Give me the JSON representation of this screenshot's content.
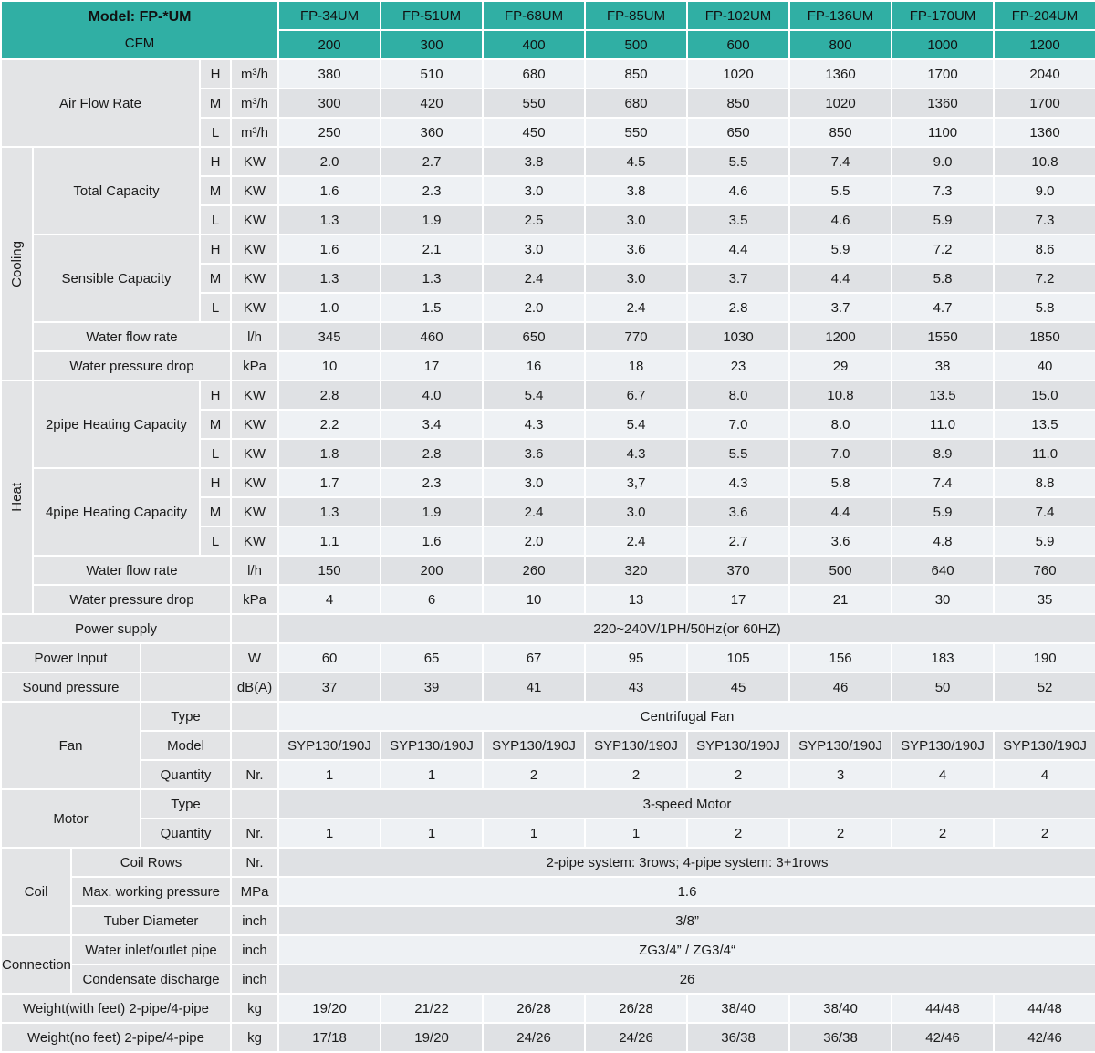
{
  "colors": {
    "teal": "#30AFA4",
    "lab": "#E3E4E6",
    "lt": "#EEF1F4",
    "gr": "#DFE1E4"
  },
  "header": {
    "model_label": "Model: FP-*UM",
    "cfm_label": "CFM",
    "models": [
      "FP-34UM",
      "FP-51UM",
      "FP-68UM",
      "FP-85UM",
      "FP-102UM",
      "FP-136UM",
      "FP-170UM",
      "FP-204UM"
    ],
    "cfm": [
      "200",
      "300",
      "400",
      "500",
      "600",
      "800",
      "1000",
      "1200"
    ]
  },
  "labels": {
    "air_flow_rate": "Air Flow Rate",
    "cooling": "Cooling",
    "heat": "Heat",
    "H": "H",
    "M": "M",
    "L": "L",
    "total_capacity": "Total Capacity",
    "sensible_capacity": "Sensible Capacity",
    "water_flow_rate": "Water flow rate",
    "water_pressure_drop": "Water pressure drop",
    "two_pipe_heating_capacity": "2pipe Heating Capacity",
    "four_pipe_heating_capacity": "4pipe Heating Capacity",
    "power_supply": "Power supply",
    "power_input": "Power Input",
    "sound_pressure": "Sound pressure",
    "fan": "Fan",
    "motor": "Motor",
    "type": "Type",
    "model": "Model",
    "quantity": "Quantity",
    "coil": "Coil",
    "coil_rows": "Coil Rows",
    "max_working_pressure": "Max. working pressure",
    "tuber_diameter": "Tuber Diameter",
    "connection": "Connection",
    "water_inlet_outlet_pipe": "Water inlet/outlet pipe",
    "condensate_discharge": "Condensate discharge",
    "weight_with_feet": "Weight(with feet) 2-pipe/4-pipe",
    "weight_no_feet": "Weight(no feet) 2-pipe/4-pipe"
  },
  "units": {
    "m3h": "m³/h",
    "kw": "KW",
    "lh": "l/h",
    "kpa": "kPa",
    "w": "W",
    "dba": "dB(A)",
    "nr": "Nr.",
    "mpa": "MPa",
    "inch": "inch",
    "kg": "kg"
  },
  "air_flow_rate": {
    "H": [
      "380",
      "510",
      "680",
      "850",
      "1020",
      "1360",
      "1700",
      "2040"
    ],
    "M": [
      "300",
      "420",
      "550",
      "680",
      "850",
      "1020",
      "1360",
      "1700"
    ],
    "L": [
      "250",
      "360",
      "450",
      "550",
      "650",
      "850",
      "1100",
      "1360"
    ]
  },
  "cooling": {
    "total_capacity": {
      "H": [
        "2.0",
        "2.7",
        "3.8",
        "4.5",
        "5.5",
        "7.4",
        "9.0",
        "10.8"
      ],
      "M": [
        "1.6",
        "2.3",
        "3.0",
        "3.8",
        "4.6",
        "5.5",
        "7.3",
        "9.0"
      ],
      "L": [
        "1.3",
        "1.9",
        "2.5",
        "3.0",
        "3.5",
        "4.6",
        "5.9",
        "7.3"
      ]
    },
    "sensible_capacity": {
      "H": [
        "1.6",
        "2.1",
        "3.0",
        "3.6",
        "4.4",
        "5.9",
        "7.2",
        "8.6"
      ],
      "M": [
        "1.3",
        "1.3",
        "2.4",
        "3.0",
        "3.7",
        "4.4",
        "5.8",
        "7.2"
      ],
      "L": [
        "1.0",
        "1.5",
        "2.0",
        "2.4",
        "2.8",
        "3.7",
        "4.7",
        "5.8"
      ]
    },
    "water_flow_rate": [
      "345",
      "460",
      "650",
      "770",
      "1030",
      "1200",
      "1550",
      "1850"
    ],
    "water_pressure_drop": [
      "10",
      "17",
      "16",
      "18",
      "23",
      "29",
      "38",
      "40"
    ]
  },
  "heat": {
    "two_pipe_heating_capacity": {
      "H": [
        "2.8",
        "4.0",
        "5.4",
        "6.7",
        "8.0",
        "10.8",
        "13.5",
        "15.0"
      ],
      "M": [
        "2.2",
        "3.4",
        "4.3",
        "5.4",
        "7.0",
        "8.0",
        "11.0",
        "13.5"
      ],
      "L": [
        "1.8",
        "2.8",
        "3.6",
        "4.3",
        "5.5",
        "7.0",
        "8.9",
        "11.0"
      ]
    },
    "four_pipe_heating_capacity": {
      "H": [
        "1.7",
        "2.3",
        "3.0",
        "3,7",
        "4.3",
        "5.8",
        "7.4",
        "8.8"
      ],
      "M": [
        "1.3",
        "1.9",
        "2.4",
        "3.0",
        "3.6",
        "4.4",
        "5.9",
        "7.4"
      ],
      "L": [
        "1.1",
        "1.6",
        "2.0",
        "2.4",
        "2.7",
        "3.6",
        "4.8",
        "5.9"
      ]
    },
    "water_flow_rate": [
      "150",
      "200",
      "260",
      "320",
      "370",
      "500",
      "640",
      "760"
    ],
    "water_pressure_drop": [
      "4",
      "6",
      "10",
      "13",
      "17",
      "21",
      "30",
      "35"
    ]
  },
  "power_supply": "220~240V/1PH/50Hz(or 60HZ)",
  "power_input": [
    "60",
    "65",
    "67",
    "95",
    "105",
    "156",
    "183",
    "190"
  ],
  "sound_pressure": [
    "37",
    "39",
    "41",
    "43",
    "45",
    "46",
    "50",
    "52"
  ],
  "fan": {
    "type": "Centrifugal Fan",
    "models": [
      "SYP130/190J",
      "SYP130/190J",
      "SYP130/190J",
      "SYP130/190J",
      "SYP130/190J",
      "SYP130/190J",
      "SYP130/190J",
      "SYP130/190J"
    ],
    "quantity": [
      "1",
      "1",
      "2",
      "2",
      "2",
      "3",
      "4",
      "4"
    ]
  },
  "motor": {
    "type": "3-speed Motor",
    "quantity": [
      "1",
      "1",
      "1",
      "1",
      "2",
      "2",
      "2",
      "2"
    ]
  },
  "coil": {
    "coil_rows": "2-pipe system: 3rows; 4-pipe system: 3+1rows",
    "max_working_pressure": "1.6",
    "tuber_diameter": "3/8”"
  },
  "connection": {
    "water_inlet_outlet_pipe": "ZG3/4” / ZG3/4“",
    "condensate_discharge": "26"
  },
  "weight": {
    "with_feet": [
      "19/20",
      "21/22",
      "26/28",
      "26/28",
      "38/40",
      "38/40",
      "44/48",
      "44/48"
    ],
    "no_feet": [
      "17/18",
      "19/20",
      "24/26",
      "24/26",
      "36/38",
      "36/38",
      "42/46",
      "42/46"
    ]
  }
}
